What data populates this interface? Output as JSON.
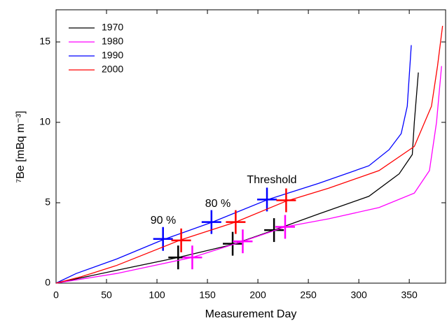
{
  "chart_data": {
    "type": "line",
    "x_label": "Measurement Day",
    "y_label": "⁷Be [mBq m⁻³]",
    "xlim": [
      0,
      386
    ],
    "xticks": [
      0,
      50,
      100,
      150,
      200,
      250,
      300,
      350
    ],
    "ylim": [
      0,
      17
    ],
    "yticks": [
      0,
      5,
      10,
      15
    ],
    "legend": "top-left",
    "annotations": [
      "90 %",
      "80 %",
      "Threshold"
    ],
    "series": [
      {
        "name": "1970",
        "color": "#000000",
        "x": [
          0,
          60,
          121,
          175,
          216,
          260,
          310,
          340,
          353,
          355,
          359
        ],
        "values": [
          0,
          0.8,
          1.6,
          2.4,
          3.3,
          4.3,
          5.4,
          6.8,
          8,
          10,
          13.1
        ],
        "markers_x": [
          121,
          175,
          216
        ],
        "markers_y": [
          1.6,
          2.45,
          3.3
        ]
      },
      {
        "name": "1980",
        "color": "#ff00ff",
        "x": [
          0,
          60,
          135,
          185,
          227,
          270,
          320,
          355,
          370,
          377,
          382
        ],
        "values": [
          0,
          0.6,
          1.6,
          2.6,
          3.5,
          4.0,
          4.7,
          5.6,
          7,
          10,
          13.5
        ],
        "markers_x": [
          135,
          185,
          227
        ],
        "markers_y": [
          1.6,
          2.6,
          3.5
        ]
      },
      {
        "name": "1990",
        "color": "#0000ff",
        "x": [
          0,
          20,
          60,
          106,
          155,
          210,
          260,
          310,
          330,
          342,
          348,
          352
        ],
        "values": [
          0,
          0.6,
          1.5,
          2.7,
          3.8,
          5.2,
          6.2,
          7.3,
          8.3,
          9.3,
          11,
          14.8
        ],
        "markers_x": [
          106,
          154,
          209
        ],
        "markers_y": [
          2.75,
          3.8,
          5.2
        ]
      },
      {
        "name": "2000",
        "color": "#ff0000",
        "x": [
          0,
          25,
          60,
          124,
          178,
          228,
          270,
          320,
          355,
          372,
          378,
          383
        ],
        "values": [
          0,
          0.4,
          1.1,
          2.7,
          3.8,
          5.1,
          5.9,
          7.0,
          8.5,
          11,
          13.5,
          16
        ],
        "markers_x": [
          124,
          178,
          228
        ],
        "markers_y": [
          2.66,
          3.8,
          5.15
        ]
      }
    ]
  }
}
